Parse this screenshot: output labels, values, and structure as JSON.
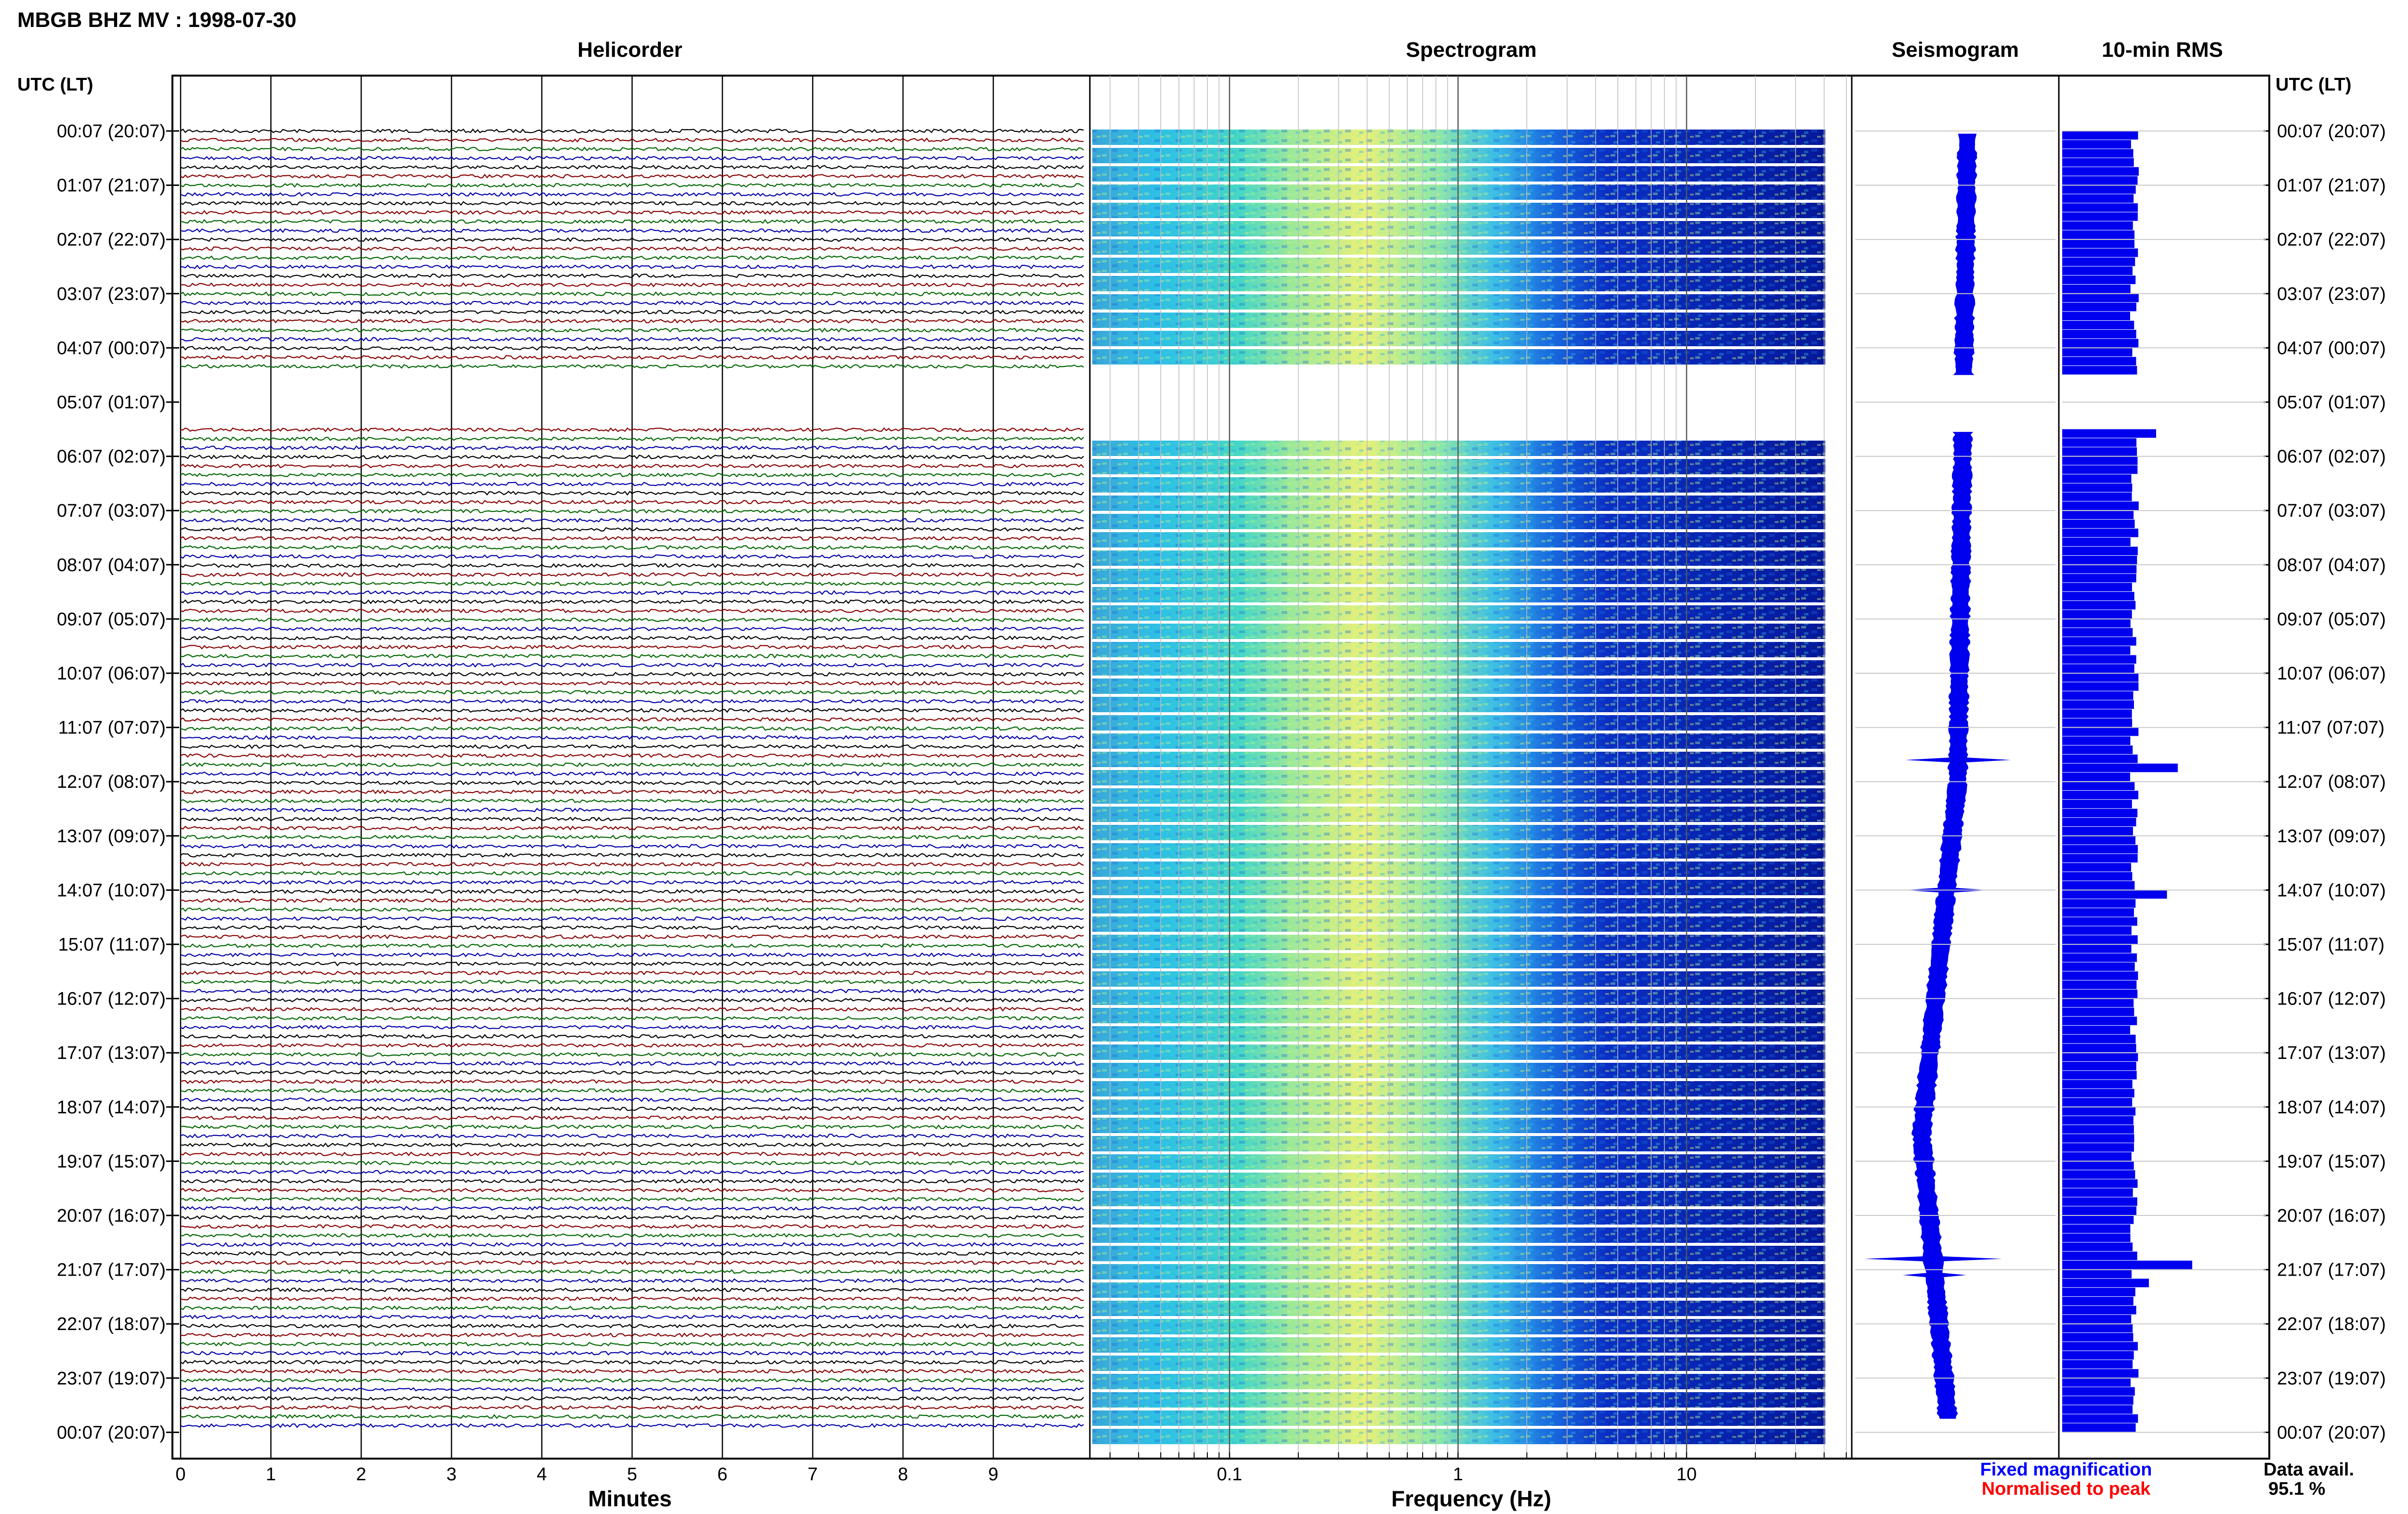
{
  "title": "MBGB BHZ MV : 1998-07-30",
  "panels": {
    "helicorder": "Helicorder",
    "spectrogram": "Spectrogram",
    "seismogram": "Seismogram",
    "rms": "10-min RMS"
  },
  "time_axis_label": "UTC (LT)",
  "time_labels": [
    "00:07 (20:07)",
    "01:07 (21:07)",
    "02:07 (22:07)",
    "03:07 (23:07)",
    "04:07 (00:07)",
    "05:07 (01:07)",
    "06:07 (02:07)",
    "07:07 (03:07)",
    "08:07 (04:07)",
    "09:07 (05:07)",
    "10:07 (06:07)",
    "11:07 (07:07)",
    "12:07 (08:07)",
    "13:07 (09:07)",
    "14:07 (10:07)",
    "15:07 (11:07)",
    "16:07 (12:07)",
    "17:07 (13:07)",
    "18:07 (14:07)",
    "19:07 (15:07)",
    "20:07 (16:07)",
    "21:07 (17:07)",
    "22:07 (18:07)",
    "23:07 (19:07)",
    "00:07 (20:07)"
  ],
  "minutes_ticks": [
    "0",
    "1",
    "2",
    "3",
    "4",
    "5",
    "6",
    "7",
    "8",
    "9"
  ],
  "minutes_label": "Minutes",
  "freq_ticks": [
    "0.1",
    "1",
    "10"
  ],
  "freq_label": "Frequency (Hz)",
  "legend": {
    "fixed": "Fixed magnification",
    "normalised": "Normalised to peak",
    "fixed_color": "#0000ff",
    "normalised_color": "#ff0000"
  },
  "data_avail": {
    "label": "Data avail.",
    "value": "95.1 %"
  },
  "colors": {
    "trace_cycle": [
      "#000000",
      "#880000",
      "#006600",
      "#0000aa"
    ],
    "bar": "#0000ee"
  },
  "chart_data": {
    "type": "bar",
    "title": "10-min RMS",
    "gap_hours": [
      4.5,
      5.5
    ],
    "rms_spikes": [
      {
        "hour": 5.55,
        "value": 1.3
      },
      {
        "hour": 11.6,
        "value": 1.6
      },
      {
        "hour": 14.0,
        "value": 1.45
      },
      {
        "hour": 20.8,
        "value": 1.8
      },
      {
        "hour": 21.2,
        "value": 1.2
      }
    ],
    "seismogram_events": [
      {
        "hour": 11.6,
        "amplitude": 1.0
      },
      {
        "hour": 14.0,
        "amplitude": 0.8
      },
      {
        "hour": 20.8,
        "amplitude": 1.3
      },
      {
        "hour": 21.1,
        "amplitude": 0.6
      }
    ],
    "freq_range_hz": [
      0.02,
      40
    ]
  }
}
